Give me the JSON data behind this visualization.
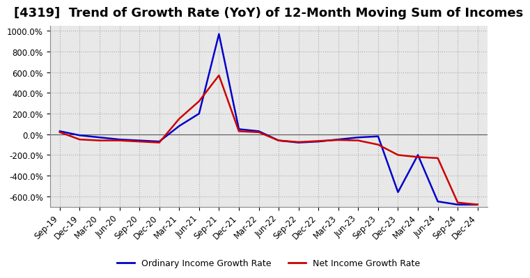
{
  "title": "[4319]  Trend of Growth Rate (YoY) of 12-Month Moving Sum of Incomes",
  "title_fontsize": 13,
  "ylabel_fontsize": 10,
  "xlabel_fontsize": 8.5,
  "ylim": [
    -700,
    1050
  ],
  "yticks": [
    -600,
    -400,
    -200,
    0,
    200,
    400,
    600,
    800,
    1000
  ],
  "background_color": "#ffffff",
  "grid_color": "#aaaaaa",
  "line_color_ordinary": "#0000cc",
  "line_color_net": "#cc0000",
  "legend_ordinary": "Ordinary Income Growth Rate",
  "legend_net": "Net Income Growth Rate",
  "x_labels": [
    "Sep-19",
    "Dec-19",
    "Mar-20",
    "Jun-20",
    "Sep-20",
    "Dec-20",
    "Mar-21",
    "Jun-21",
    "Sep-21",
    "Dec-21",
    "Mar-22",
    "Jun-22",
    "Sep-22",
    "Dec-22",
    "Mar-23",
    "Jun-23",
    "Sep-23",
    "Dec-23",
    "Mar-24",
    "Jun-24",
    "Sep-24",
    "Dec-24"
  ],
  "ordinary_income": [
    30,
    -10,
    -30,
    -50,
    -60,
    -70,
    80,
    200,
    970,
    50,
    30,
    -60,
    -80,
    -70,
    -50,
    -30,
    -20,
    -560,
    -200,
    -650,
    -680,
    -680
  ],
  "net_income": [
    20,
    -50,
    -60,
    -60,
    -70,
    -80,
    150,
    320,
    570,
    30,
    20,
    -60,
    -75,
    -65,
    -55,
    -60,
    -100,
    -200,
    -220,
    -230,
    -660,
    -680
  ]
}
